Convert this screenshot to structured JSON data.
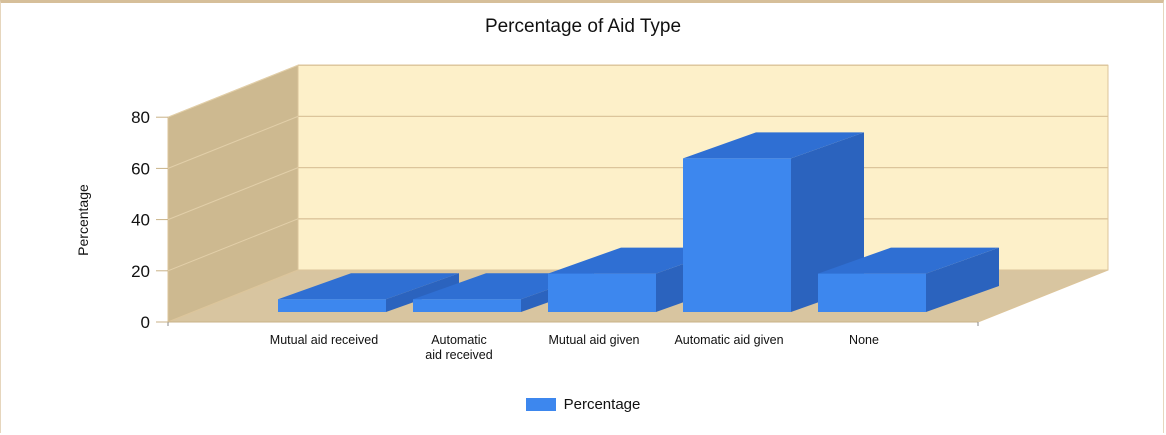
{
  "chart_data": {
    "type": "bar",
    "title": "Percentage of Aid Type",
    "ylabel": "Percentage",
    "xlabel": "",
    "categories": [
      "Mutual aid received",
      "Automatic aid received",
      "Mutual aid given",
      "Automatic aid given",
      "None"
    ],
    "category_label_lines": [
      [
        "Mutual aid received"
      ],
      [
        "Automatic",
        "aid received"
      ],
      [
        "Mutual aid given"
      ],
      [
        "Automatic aid given"
      ],
      [
        "None"
      ]
    ],
    "series": [
      {
        "name": "Percentage",
        "values": [
          5,
          5,
          15,
          60,
          15
        ],
        "color": "#3d87ee"
      }
    ],
    "ylim": [
      0,
      80
    ],
    "yticks": [
      0,
      20,
      40,
      60,
      80
    ],
    "grid": true,
    "three_d": true,
    "legend": "bottom-center",
    "colors": {
      "bar_front": "#3d87ee",
      "bar_top": "#2f6fd3",
      "bar_side": "#2b63be",
      "back_wall": "#fdf0c9",
      "side_wall": "#cdb990",
      "floor": "#d8c5a0",
      "grid": "#dcc59b"
    }
  }
}
